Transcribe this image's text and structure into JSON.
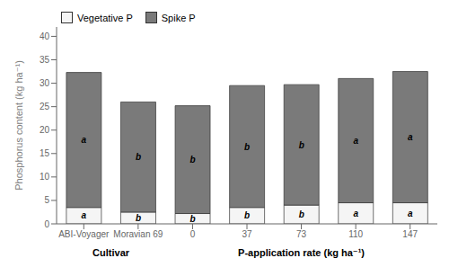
{
  "chart_data": {
    "type": "bar",
    "stacked": true,
    "categories": [
      "ABI-Voyager",
      "Moravian 69",
      "0",
      "37",
      "73",
      "110",
      "147"
    ],
    "series": [
      {
        "name": "Vegetative P",
        "color": "#f5f5f5",
        "values": [
          3.5,
          2.5,
          2.2,
          3.5,
          4.0,
          4.5,
          4.5
        ],
        "significance_letters": [
          "a",
          "b",
          "b",
          "b",
          "b",
          "a",
          "a"
        ]
      },
      {
        "name": "Spike P",
        "color": "#7a7a7a",
        "values": [
          28.8,
          23.5,
          23.0,
          26.0,
          25.7,
          26.5,
          28.0
        ],
        "significance_letters": [
          "a",
          "b",
          "b",
          "b",
          "b",
          "a",
          "a"
        ]
      }
    ],
    "ylabel": "Phosphorus content (kg ha⁻¹)",
    "groups": [
      {
        "label": "Cultivar",
        "categories": [
          "ABI-Voyager",
          "Moravian 69"
        ]
      },
      {
        "label": "P-application rate (kg ha⁻¹)",
        "categories": [
          "0",
          "37",
          "73",
          "110",
          "147"
        ]
      }
    ],
    "ylim": [
      0,
      42
    ],
    "yticks": [
      0,
      5,
      10,
      15,
      20,
      25,
      30,
      35,
      40
    ],
    "legend": "upper left",
    "grid": false
  }
}
